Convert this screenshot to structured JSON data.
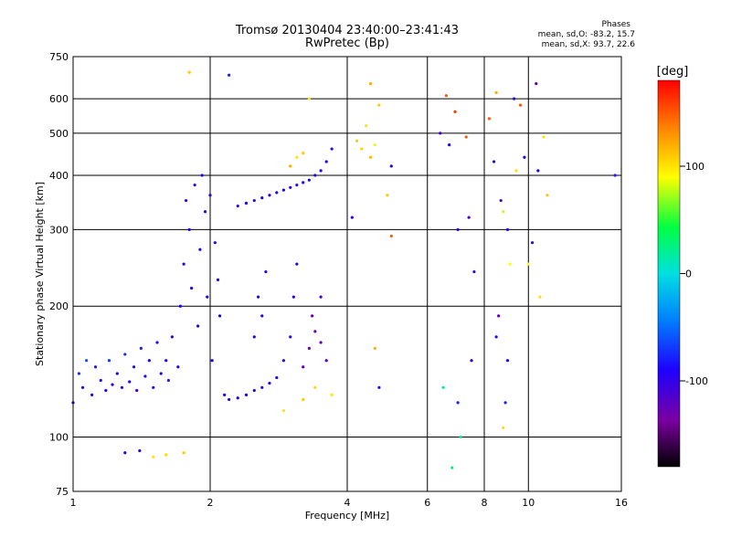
{
  "title_line1": "Tromsø 20130404 23:40:00–23:41:43",
  "title_line2": "RwPretec (Bp)",
  "phases": {
    "title": "Phases",
    "o_line": "mean, sd,O: -83.2, 15.7",
    "x_line": "mean, sd,X:  93.7, 22.6"
  },
  "colorbar": {
    "label": "[deg]",
    "ticks": [
      "100",
      "0",
      "-100"
    ],
    "tick_values": [
      100,
      0,
      -100
    ],
    "range": [
      -180,
      180
    ]
  },
  "chart_data": {
    "type": "scatter",
    "xlabel": "Frequency [MHz]",
    "ylabel": "Stationary phase Virtual Height [km]",
    "xscale": "log",
    "yscale": "log",
    "xlim": [
      1,
      16
    ],
    "ylim": [
      75,
      750
    ],
    "x_ticks": [
      1,
      2,
      4,
      6,
      8,
      10,
      16
    ],
    "x_tick_labels": [
      "1",
      "2",
      "4",
      "6",
      "8",
      "10",
      "16"
    ],
    "y_ticks": [
      75,
      100,
      200,
      300,
      400,
      500,
      600,
      750
    ],
    "y_tick_labels": [
      "75",
      "100",
      "200",
      "300",
      "400",
      "500",
      "600",
      "750"
    ],
    "grid": true,
    "series": [
      {
        "points": [
          [
            1.0,
            120,
            -95
          ],
          [
            1.03,
            140,
            -75
          ],
          [
            1.05,
            130,
            -90
          ],
          [
            1.07,
            150,
            -60
          ],
          [
            1.1,
            125,
            -95
          ],
          [
            1.12,
            145,
            -80
          ],
          [
            1.15,
            135,
            -85
          ],
          [
            1.18,
            128,
            -100
          ],
          [
            1.2,
            150,
            -70
          ],
          [
            1.22,
            132,
            -95
          ],
          [
            1.25,
            140,
            -90
          ],
          [
            1.28,
            130,
            -100
          ],
          [
            1.3,
            155,
            -75
          ],
          [
            1.33,
            134,
            -95
          ],
          [
            1.36,
            145,
            -85
          ],
          [
            1.38,
            128,
            -105
          ],
          [
            1.41,
            160,
            -80
          ],
          [
            1.44,
            138,
            -95
          ],
          [
            1.47,
            150,
            -90
          ],
          [
            1.5,
            130,
            -100
          ],
          [
            1.53,
            165,
            -85
          ],
          [
            1.56,
            140,
            -95
          ],
          [
            1.6,
            150,
            -90
          ],
          [
            1.62,
            135,
            -80
          ],
          [
            1.65,
            170,
            -90
          ],
          [
            1.7,
            145,
            -95
          ],
          [
            1.72,
            200,
            -90
          ],
          [
            1.75,
            250,
            -95
          ],
          [
            1.77,
            350,
            -100
          ],
          [
            1.8,
            300,
            -90
          ],
          [
            1.82,
            220,
            -95
          ],
          [
            1.85,
            380,
            -100
          ],
          [
            1.88,
            180,
            -90
          ],
          [
            1.9,
            270,
            -95
          ],
          [
            1.92,
            400,
            -95
          ],
          [
            1.95,
            330,
            -100
          ],
          [
            1.97,
            210,
            -90
          ],
          [
            2.0,
            360,
            -95
          ],
          [
            2.02,
            150,
            -90
          ],
          [
            2.05,
            280,
            -95
          ],
          [
            2.08,
            230,
            -100
          ],
          [
            2.1,
            190,
            -90
          ],
          [
            2.15,
            125,
            -95
          ],
          [
            2.2,
            122,
            -90
          ],
          [
            2.3,
            123,
            -95
          ],
          [
            2.4,
            125,
            -90
          ],
          [
            2.5,
            128,
            -95
          ],
          [
            2.6,
            130,
            -90
          ],
          [
            2.7,
            133,
            -95
          ],
          [
            2.8,
            137,
            -90
          ],
          [
            2.3,
            340,
            -95
          ],
          [
            2.4,
            345,
            -90
          ],
          [
            2.5,
            350,
            -95
          ],
          [
            2.6,
            355,
            -90
          ],
          [
            2.7,
            360,
            -100
          ],
          [
            2.8,
            365,
            -95
          ],
          [
            2.9,
            370,
            -90
          ],
          [
            3.0,
            375,
            -95
          ],
          [
            3.1,
            380,
            -100
          ],
          [
            3.2,
            385,
            -95
          ],
          [
            3.3,
            390,
            -90
          ],
          [
            3.4,
            400,
            -95
          ],
          [
            3.5,
            410,
            -90
          ],
          [
            3.6,
            430,
            -95
          ],
          [
            3.7,
            460,
            -90
          ],
          [
            2.5,
            170,
            -95
          ],
          [
            2.55,
            210,
            -90
          ],
          [
            2.6,
            190,
            -95
          ],
          [
            2.65,
            240,
            -90
          ],
          [
            2.9,
            150,
            -100
          ],
          [
            3.0,
            170,
            -95
          ],
          [
            3.05,
            210,
            -100
          ],
          [
            3.1,
            250,
            -95
          ],
          [
            3.2,
            145,
            -120
          ],
          [
            3.3,
            160,
            -130
          ],
          [
            3.4,
            175,
            -135
          ],
          [
            3.5,
            165,
            -125
          ],
          [
            3.35,
            190,
            -120
          ],
          [
            3.5,
            210,
            -110
          ],
          [
            3.6,
            150,
            -115
          ],
          [
            3.1,
            440,
            100
          ],
          [
            3.2,
            450,
            110
          ],
          [
            3.0,
            420,
            120
          ],
          [
            4.2,
            480,
            110
          ],
          [
            4.3,
            460,
            105
          ],
          [
            4.5,
            440,
            115
          ],
          [
            4.6,
            470,
            95
          ],
          [
            4.4,
            520,
            100
          ],
          [
            3.3,
            600,
            100
          ],
          [
            4.7,
            580,
            110
          ],
          [
            3.7,
            125,
            100
          ],
          [
            3.4,
            130,
            105
          ],
          [
            3.2,
            122,
            110
          ],
          [
            2.9,
            115,
            100
          ],
          [
            1.5,
            90,
            100
          ],
          [
            1.6,
            91,
            105
          ],
          [
            1.75,
            92,
            110
          ],
          [
            1.3,
            92,
            -90
          ],
          [
            1.4,
            93,
            -95
          ],
          [
            1.8,
            690,
            110
          ],
          [
            2.2,
            680,
            -80
          ],
          [
            4.5,
            650,
            120
          ],
          [
            6.6,
            610,
            150
          ],
          [
            6.9,
            560,
            160
          ],
          [
            6.4,
            500,
            -110
          ],
          [
            6.7,
            470,
            -90
          ],
          [
            7.3,
            490,
            150
          ],
          [
            7.0,
            300,
            -95
          ],
          [
            7.4,
            320,
            -110
          ],
          [
            7.6,
            240,
            -100
          ],
          [
            7.5,
            150,
            -100
          ],
          [
            7.0,
            120,
            -80
          ],
          [
            6.5,
            130,
            20
          ],
          [
            6.8,
            85,
            30
          ],
          [
            7.1,
            100,
            20
          ],
          [
            8.2,
            540,
            150
          ],
          [
            8.5,
            620,
            120
          ],
          [
            8.4,
            430,
            -100
          ],
          [
            8.7,
            350,
            -110
          ],
          [
            8.8,
            330,
            80
          ],
          [
            9.0,
            300,
            -95
          ],
          [
            9.1,
            250,
            90
          ],
          [
            8.6,
            190,
            -120
          ],
          [
            8.5,
            170,
            -100
          ],
          [
            9.0,
            150,
            -90
          ],
          [
            8.9,
            120,
            -80
          ],
          [
            8.8,
            105,
            100
          ],
          [
            9.3,
            600,
            -100
          ],
          [
            9.6,
            580,
            150
          ],
          [
            9.4,
            410,
            100
          ],
          [
            9.8,
            440,
            -90
          ],
          [
            10.2,
            280,
            -100
          ],
          [
            10.0,
            250,
            90
          ],
          [
            10.6,
            210,
            100
          ],
          [
            10.8,
            490,
            100
          ],
          [
            11.0,
            360,
            110
          ],
          [
            10.4,
            650,
            -120
          ],
          [
            15.5,
            400,
            -80
          ],
          [
            10.5,
            410,
            -90
          ],
          [
            5.0,
            290,
            150
          ],
          [
            4.9,
            360,
            110
          ],
          [
            5.0,
            420,
            -90
          ],
          [
            4.1,
            320,
            -100
          ],
          [
            4.6,
            160,
            120
          ],
          [
            4.7,
            130,
            -90
          ]
        ]
      }
    ]
  }
}
